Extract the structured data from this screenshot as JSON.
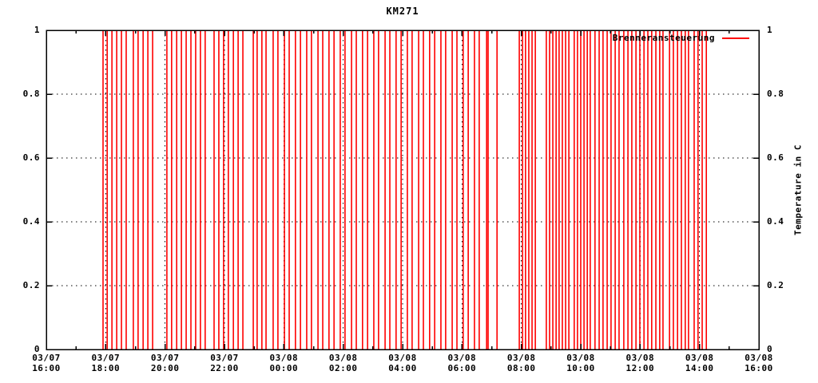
{
  "title": "KM271",
  "legend": {
    "label": "Brenneransteuerung"
  },
  "colors": {
    "series": "#ff0000",
    "axis": "#000000",
    "grid": "#000000",
    "background": "#ffffff"
  },
  "axes": {
    "y_right_label": "Temperature in C",
    "y_ticks": [
      {
        "label": "0",
        "value": 0
      },
      {
        "label": "0.2",
        "value": 0.2
      },
      {
        "label": "0.4",
        "value": 0.4
      },
      {
        "label": "0.6",
        "value": 0.6
      },
      {
        "label": "0.8",
        "value": 0.8
      },
      {
        "label": "1",
        "value": 1
      }
    ],
    "x_ticks": [
      {
        "date": "03/07",
        "time": "16:00",
        "hour": 0
      },
      {
        "date": "03/07",
        "time": "18:00",
        "hour": 2
      },
      {
        "date": "03/07",
        "time": "20:00",
        "hour": 4
      },
      {
        "date": "03/07",
        "time": "22:00",
        "hour": 6
      },
      {
        "date": "03/08",
        "time": "00:00",
        "hour": 8
      },
      {
        "date": "03/08",
        "time": "02:00",
        "hour": 10
      },
      {
        "date": "03/08",
        "time": "04:00",
        "hour": 12
      },
      {
        "date": "03/08",
        "time": "06:00",
        "hour": 14
      },
      {
        "date": "03/08",
        "time": "08:00",
        "hour": 16
      },
      {
        "date": "03/08",
        "time": "10:00",
        "hour": 18
      },
      {
        "date": "03/08",
        "time": "12:00",
        "hour": 20
      },
      {
        "date": "03/08",
        "time": "14:00",
        "hour": 22
      },
      {
        "date": "03/08",
        "time": "16:00",
        "hour": 24
      }
    ]
  },
  "chart_data": {
    "type": "line",
    "title": "KM271",
    "x_axis": {
      "start_label": "03/07 16:00",
      "end_label": "03/08 16:00",
      "span_hours": 24,
      "major_tick_interval_hours": 2,
      "minor_tick_interval_hours": 1
    },
    "ylim": [
      0,
      1
    ],
    "y_right_label": "Temperature in C",
    "grid": "dotted, horizontal at 0.2/0.4/0.6/0.8 and vertical at each 2h major tick",
    "legend_position": "top-right-inside",
    "series": [
      {
        "name": "Brenneransteuerung",
        "color": "#ff0000",
        "style": "binary on/off impulses, each pulse spans full 0 to 1",
        "pulse_hours_from_start": [
          1.91,
          2.05,
          2.21,
          2.37,
          2.53,
          2.69,
          2.93,
          3.09,
          3.26,
          3.42,
          3.58,
          4.06,
          4.22,
          4.39,
          4.55,
          4.71,
          4.87,
          5.03,
          5.19,
          5.35,
          5.65,
          5.81,
          5.97,
          6.13,
          6.3,
          6.46,
          6.62,
          6.97,
          7.1,
          7.26,
          7.4,
          7.64,
          7.8,
          8.02,
          8.18,
          8.39,
          8.56,
          8.77,
          8.93,
          9.15,
          9.31,
          9.52,
          9.69,
          9.9,
          10.06,
          10.28,
          10.44,
          10.65,
          10.82,
          11.03,
          11.19,
          11.41,
          11.57,
          11.78,
          11.95,
          12.16,
          12.32,
          12.54,
          12.7,
          12.91,
          13.08,
          13.29,
          13.45,
          13.67,
          13.83,
          14.04,
          14.21,
          14.42,
          14.58,
          14.83,
          14.88,
          15.18,
          15.93,
          16.04,
          16.14,
          16.25,
          16.36,
          16.47,
          16.84,
          16.95,
          17.06,
          17.17,
          17.27,
          17.38,
          17.49,
          17.6,
          17.78,
          17.89,
          18.0,
          18.11,
          18.22,
          18.32,
          18.48,
          18.62,
          18.75,
          18.89,
          19.02,
          19.16,
          19.29,
          19.45,
          19.59,
          19.72,
          19.86,
          19.99,
          20.13,
          20.26,
          20.39,
          20.53,
          20.66,
          20.77,
          20.99,
          21.12,
          21.26,
          21.39,
          21.52,
          21.63,
          21.82,
          21.95,
          22.09,
          22.23
        ]
      }
    ]
  }
}
